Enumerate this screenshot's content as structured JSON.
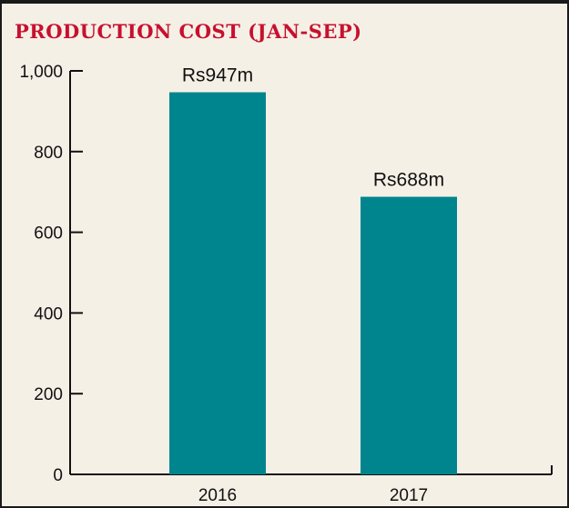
{
  "chart_data": {
    "type": "bar",
    "title": "PRODUCTION COST (JAN-SEP)",
    "xlabel": "",
    "ylabel": "",
    "categories": [
      "2016",
      "2017"
    ],
    "values": [
      947,
      688
    ],
    "data_labels": [
      "Rs947m",
      "Rs688m"
    ],
    "ylim": [
      0,
      1000
    ],
    "yticks": [
      0,
      200,
      400,
      600,
      800,
      1000
    ],
    "ytick_labels": [
      "0",
      "200",
      "400",
      "600",
      "800",
      "1,000"
    ],
    "grid": false,
    "legend": "none",
    "bar_color": "#00858f",
    "title_color": "#c8102e"
  }
}
